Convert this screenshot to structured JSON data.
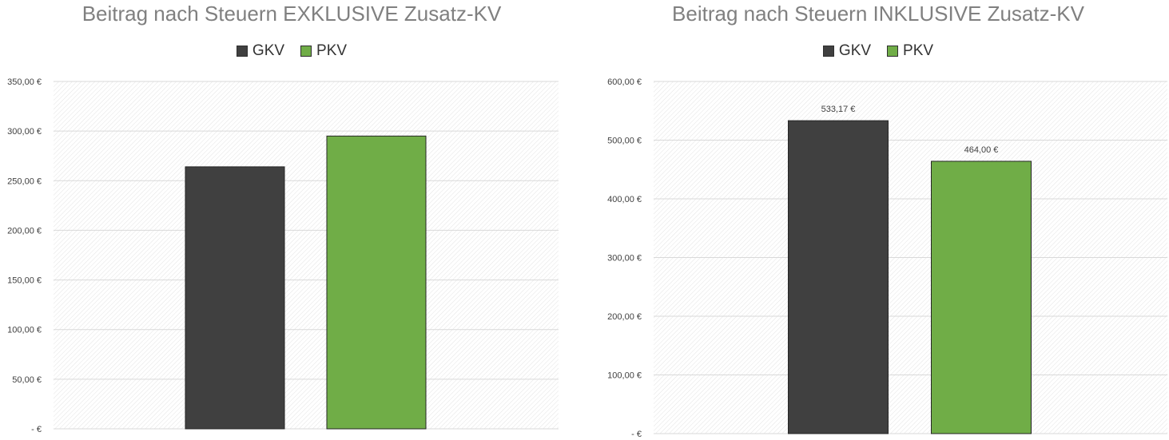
{
  "colors": {
    "gkv": "#404040",
    "pkv": "#70ad47",
    "grid": "#d9d9d9",
    "hatch": "#e3e3e3",
    "title": "#808080"
  },
  "chart_data": [
    {
      "type": "bar",
      "title": "Beitrag nach Steuern EXKLUSIVE Zusatz-KV",
      "legend": "top",
      "grid": true,
      "ylim": [
        0,
        350
      ],
      "yticks": [
        0,
        50,
        100,
        150,
        200,
        250,
        300,
        350
      ],
      "ytick_labels": [
        "-  €",
        "50,00 €",
        "100,00 €",
        "150,00 €",
        "200,00 €",
        "250,00 €",
        "300,00 €",
        "350,00 €"
      ],
      "series": [
        {
          "name": "GKV",
          "value": 264,
          "data_label": ""
        },
        {
          "name": "PKV",
          "value": 295,
          "data_label": ""
        }
      ]
    },
    {
      "type": "bar",
      "title": "Beitrag nach Steuern INKLUSIVE Zusatz-KV",
      "legend": "top",
      "grid": true,
      "ylim": [
        0,
        600
      ],
      "yticks": [
        0,
        100,
        200,
        300,
        400,
        500,
        600
      ],
      "ytick_labels": [
        "-  €",
        "100,00 €",
        "200,00 €",
        "300,00 €",
        "400,00 €",
        "500,00 €",
        "600,00 €"
      ],
      "series": [
        {
          "name": "GKV",
          "value": 533.17,
          "data_label": "533,17 €"
        },
        {
          "name": "PKV",
          "value": 464.0,
          "data_label": "464,00 €"
        }
      ]
    }
  ]
}
